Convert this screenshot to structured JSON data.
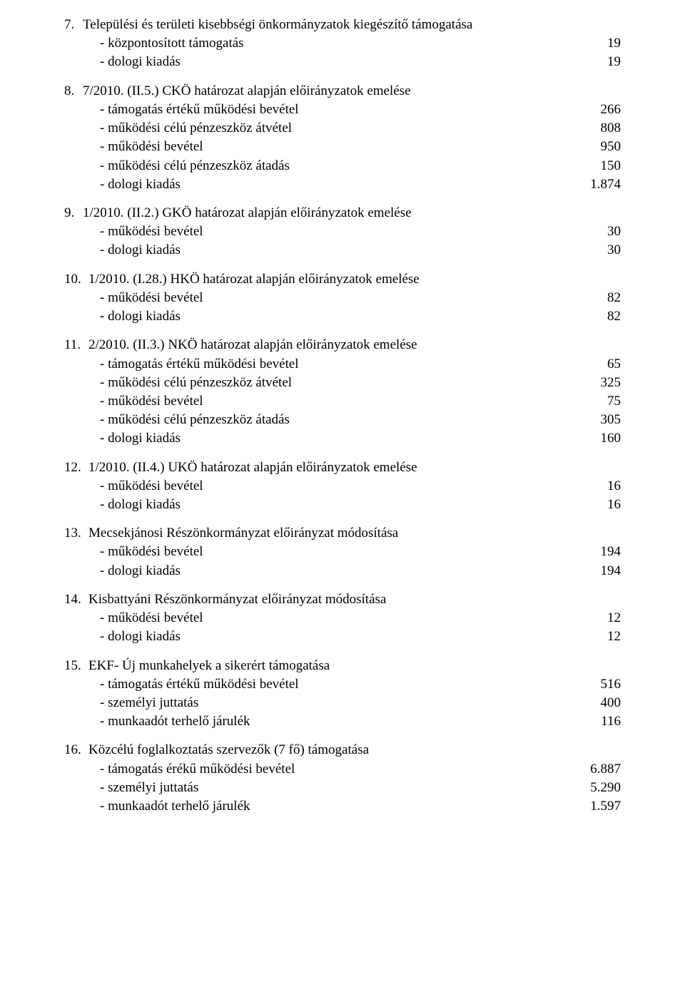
{
  "items": [
    {
      "num": "7.",
      "title": "Települési és területi kisebbségi önkormányzatok kiegészítő támogatása",
      "lines": [
        {
          "label": "- központosított támogatás",
          "val": "19"
        },
        {
          "label": "- dologi kiadás",
          "val": "19"
        }
      ]
    },
    {
      "num": "8.",
      "title": "7/2010. (II.5.) CKÖ határozat alapján előirányzatok emelése",
      "lines": [
        {
          "label": "- támogatás értékű működési bevétel",
          "val": "266"
        },
        {
          "label": "- működési célú pénzeszköz átvétel",
          "val": "808"
        },
        {
          "label": "- működési bevétel",
          "val": "950"
        },
        {
          "label": "- működési célú pénzeszköz átadás",
          "val": "150"
        },
        {
          "label": "- dologi kiadás",
          "val": "1.874"
        }
      ]
    },
    {
      "num": "9.",
      "title": "1/2010. (II.2.) GKÖ határozat alapján előirányzatok emelése",
      "lines": [
        {
          "label": "- működési bevétel",
          "val": "30"
        },
        {
          "label": "- dologi kiadás",
          "val": "30"
        }
      ]
    },
    {
      "num": "10.",
      "title": "1/2010. (I.28.) HKÖ határozat alapján előirányzatok emelése",
      "lines": [
        {
          "label": "- működési bevétel",
          "val": "82"
        },
        {
          "label": "- dologi kiadás",
          "val": "82"
        }
      ]
    },
    {
      "num": "11.",
      "title": "2/2010. (II.3.) NKÖ határozat alapján előirányzatok emelése",
      "lines": [
        {
          "label": "- támogatás értékű működési bevétel",
          "val": "65"
        },
        {
          "label": "- működési célú pénzeszköz átvétel",
          "val": "325"
        },
        {
          "label": "- működési bevétel",
          "val": "75"
        },
        {
          "label": "- működési célú pénzeszköz átadás",
          "val": "305"
        },
        {
          "label": "- dologi kiadás",
          "val": "160"
        }
      ]
    },
    {
      "num": "12.",
      "title": "1/2010. (II.4.) UKÖ határozat alapján előirányzatok emelése",
      "lines": [
        {
          "label": "- működési bevétel",
          "val": "16"
        },
        {
          "label": "- dologi kiadás",
          "val": "16"
        }
      ]
    },
    {
      "num": "13.",
      "title": "Mecsekjánosi Részönkormányzat előirányzat módosítása",
      "lines": [
        {
          "label": "- működési bevétel",
          "val": "194"
        },
        {
          "label": "- dologi kiadás",
          "val": "194"
        }
      ]
    },
    {
      "num": "14.",
      "title": "Kisbattyáni Részönkormányzat előirányzat módosítása",
      "lines": [
        {
          "label": "- működési bevétel",
          "val": "12"
        },
        {
          "label": "- dologi kiadás",
          "val": "12"
        }
      ]
    },
    {
      "num": "15.",
      "title": "EKF- Új munkahelyek a sikerért támogatása",
      "lines": [
        {
          "label": "- támogatás értékű működési bevétel",
          "val": "516"
        },
        {
          "label": "- személyi juttatás",
          "val": "400"
        },
        {
          "label": "- munkaadót terhelő járulék",
          "val": "116"
        }
      ]
    },
    {
      "num": "16.",
      "title": "Közcélú foglalkoztatás szervezők (7 fő) támogatása",
      "lines": [
        {
          "label": "- támogatás érékű működési bevétel",
          "val": "6.887"
        },
        {
          "label": "- személyi juttatás",
          "val": "5.290"
        },
        {
          "label": "- munkaadót terhelő járulék",
          "val": "1.597"
        }
      ]
    }
  ]
}
